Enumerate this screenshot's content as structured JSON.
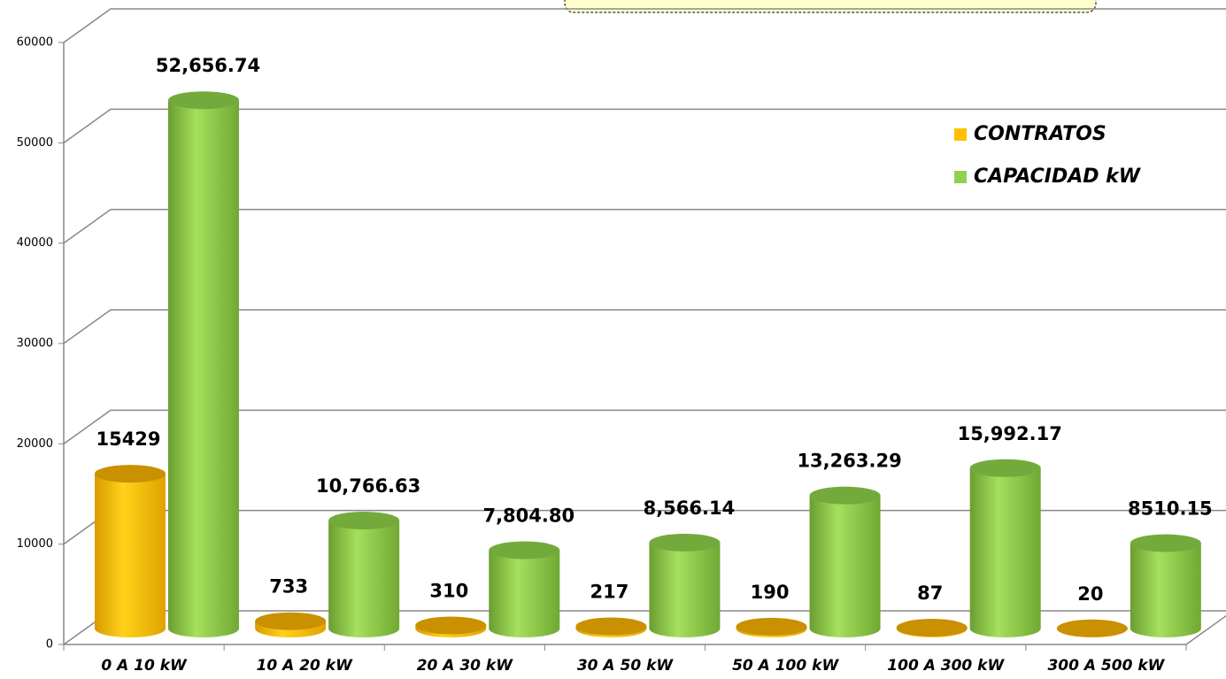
{
  "chart_data": {
    "type": "bar3d",
    "categories": [
      "0 A 10 kW",
      "10 A 20 kW",
      "20 A 30 kW",
      "30 A 50 kW",
      "50 A 100 kW",
      "100 A 300 kW",
      "300 A 500 kW"
    ],
    "series": [
      {
        "name": "CONTRATOS",
        "color": "#ffc000",
        "values": [
          15429,
          733,
          310,
          217,
          190,
          87,
          20
        ]
      },
      {
        "name": "CAPACIDAD kW",
        "color": "#92d050",
        "values": [
          52656.74,
          10766.63,
          7804.8,
          8566.14,
          13263.29,
          15992.17,
          8510.15
        ],
        "value_labels": [
          "52,656.74",
          "10,766.63",
          "7,804.80",
          "8,566.14",
          "13,263.29",
          "15,992.17",
          "8510.15"
        ]
      }
    ],
    "ylim": [
      0,
      60000
    ],
    "yticks": [
      0,
      10000,
      20000,
      30000,
      40000,
      50000,
      60000
    ],
    "grid": true,
    "legend": "upper right"
  }
}
